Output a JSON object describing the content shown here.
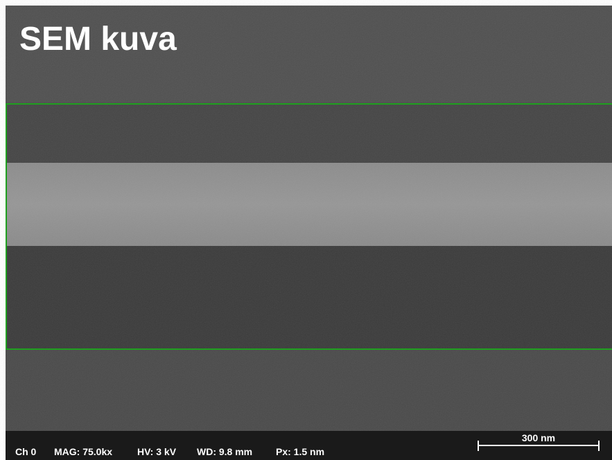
{
  "title": "SEM kuva",
  "info_bar": {
    "channel": "Ch 0",
    "magnification": "MAG: 75.0kx",
    "voltage": "HV: 3 kV",
    "working_distance": "WD: 9.8 mm",
    "pixel_size": "Px: 1.5 nm"
  },
  "scale_bar": {
    "label": "300 nm"
  }
}
